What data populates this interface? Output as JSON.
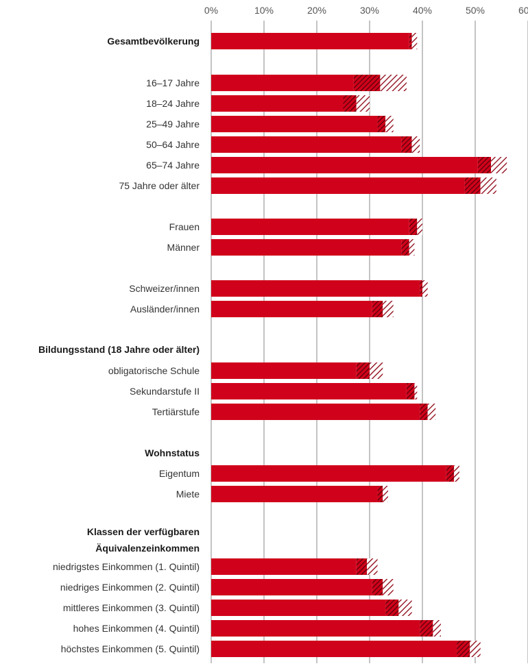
{
  "chart_data": {
    "type": "bar",
    "orientation": "horizontal",
    "stacked": true,
    "title": "",
    "xlabel": "",
    "ylabel": "",
    "xlim": [
      0,
      60
    ],
    "x_ticks": [
      "0%",
      "10%",
      "20%",
      "30%",
      "40%",
      "50%",
      "60%"
    ],
    "grid": true,
    "legend": "none",
    "colors": {
      "bar": "#d0021b",
      "hatch": "#8b0010",
      "grid": "#888888"
    },
    "series": [
      {
        "style": "solid",
        "values": [
          37.5,
          27,
          25,
          31.5,
          36,
          50.5,
          48,
          37.5,
          36,
          39.5,
          30.5,
          27.5,
          37,
          39.5,
          44.5,
          31.5,
          27.5,
          30.5,
          33,
          39.5,
          46.5
        ]
      },
      {
        "style": "dark-hatched",
        "values": [
          0.5,
          5,
          2.5,
          1.5,
          2,
          2.5,
          3,
          1.5,
          1.5,
          0.5,
          2,
          2.5,
          1.5,
          1.5,
          1.5,
          1,
          2,
          2,
          2.5,
          2.5,
          2.5
        ]
      },
      {
        "style": "light-hatched",
        "values": [
          1,
          5,
          2.5,
          1.5,
          1.5,
          3,
          3,
          1,
          1,
          1,
          2,
          2.5,
          0.5,
          1.5,
          1,
          1,
          2,
          2,
          2.5,
          1.5,
          2
        ]
      }
    ],
    "rows": [
      {
        "label": "Gesamtbevölkerung",
        "bold": true,
        "bar": 0
      },
      {
        "label": "16–17 Jahre",
        "bold": false,
        "bar": 1
      },
      {
        "label": "18–24 Jahre",
        "bold": false,
        "bar": 2
      },
      {
        "label": "25–49 Jahre",
        "bold": false,
        "bar": 3
      },
      {
        "label": "50–64 Jahre",
        "bold": false,
        "bar": 4
      },
      {
        "label": "65–74 Jahre",
        "bold": false,
        "bar": 5
      },
      {
        "label": "75 Jahre oder älter",
        "bold": false,
        "bar": 6
      },
      {
        "label": "Frauen",
        "bold": false,
        "bar": 7
      },
      {
        "label": "Männer",
        "bold": false,
        "bar": 8
      },
      {
        "label": "Schweizer/innen",
        "bold": false,
        "bar": 9
      },
      {
        "label": "Ausländer/innen",
        "bold": false,
        "bar": 10
      },
      {
        "label": "Bildungsstand (18 Jahre oder älter)",
        "bold": true,
        "bar": null
      },
      {
        "label": "obligatorische Schule",
        "bold": false,
        "bar": 11
      },
      {
        "label": "Sekundarstufe II",
        "bold": false,
        "bar": 12
      },
      {
        "label": "Tertiärstufe",
        "bold": false,
        "bar": 13
      },
      {
        "label": "Wohnstatus",
        "bold": true,
        "bar": null
      },
      {
        "label": "Eigentum",
        "bold": false,
        "bar": 14
      },
      {
        "label": "Miete",
        "bold": false,
        "bar": 15
      },
      {
        "label": "Klassen der verfügbaren",
        "bold": true,
        "bar": null
      },
      {
        "label": "Äquivalenzeinkommen",
        "bold": true,
        "bar": null
      },
      {
        "label": "niedrigstes Einkommen (1. Quintil)",
        "bold": false,
        "bar": 16
      },
      {
        "label": "niedriges Einkommen (2. Quintil)",
        "bold": false,
        "bar": 17
      },
      {
        "label": "mittleres Einkommen (3. Quintil)",
        "bold": false,
        "bar": 18
      },
      {
        "label": "hohes Einkommen (4. Quintil)",
        "bold": false,
        "bar": 19
      },
      {
        "label": "höchstes Einkommen (5. Quintil)",
        "bold": false,
        "bar": 20
      }
    ]
  }
}
